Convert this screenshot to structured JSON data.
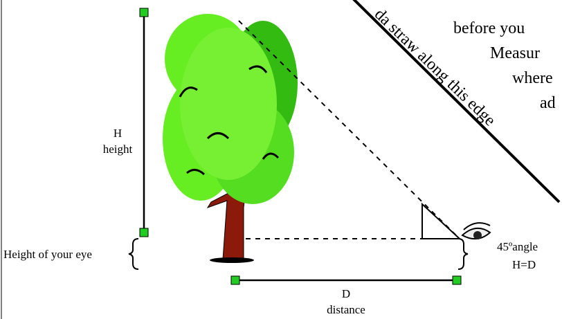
{
  "labels": {
    "h": "H",
    "height": "height",
    "eye_height": "Height of your eye",
    "d": "D",
    "distance": "distance",
    "angle": "45ºangle",
    "equation": "H=D",
    "edge": "da straw along this edge"
  },
  "paper_text": [
    "before you",
    "Measur",
    "where",
    "ad"
  ]
}
